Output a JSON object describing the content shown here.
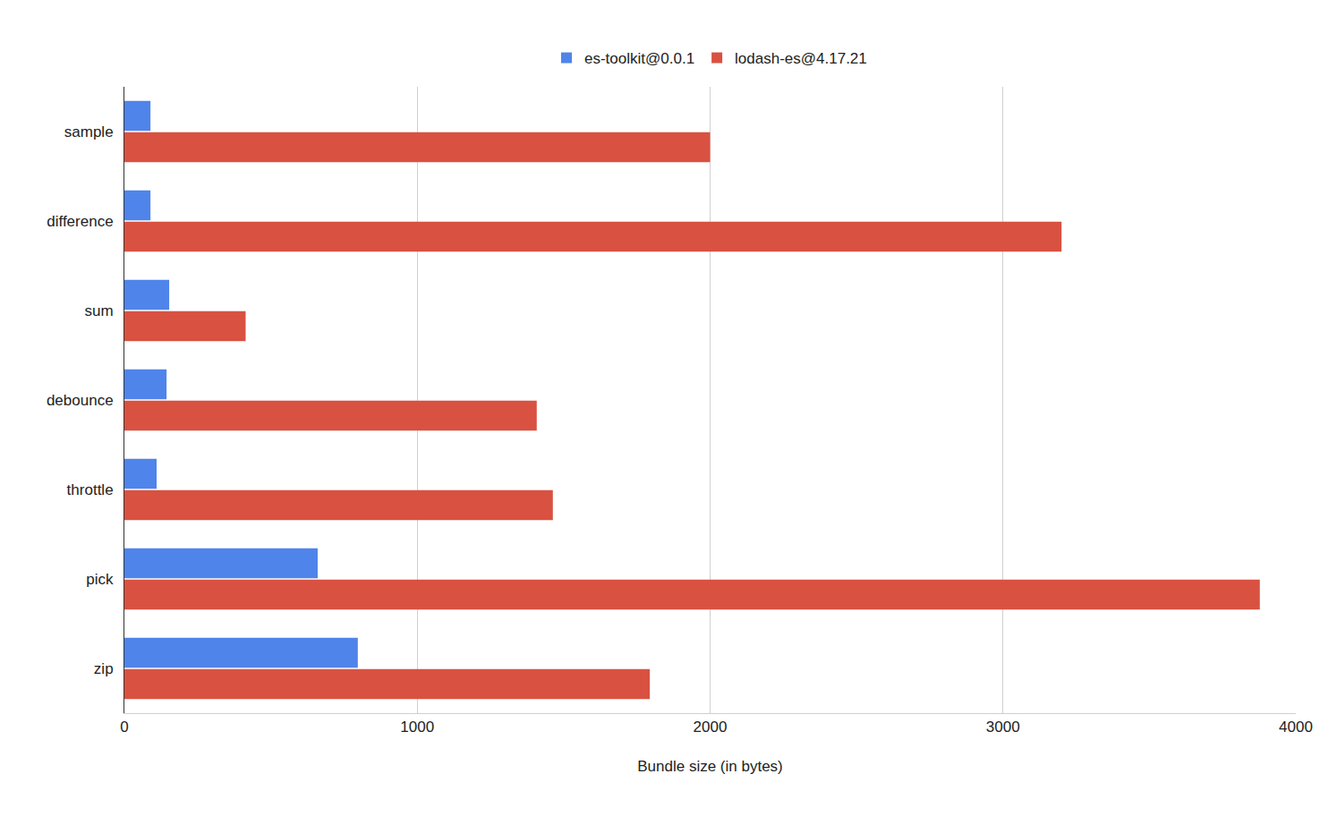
{
  "chart_data": {
    "type": "bar",
    "orientation": "horizontal",
    "x_label": "Bundle size (in bytes)",
    "categories": [
      "sample",
      "difference",
      "sum",
      "debounce",
      "throttle",
      "pick",
      "zip"
    ],
    "series": [
      {
        "name": "es-toolkit@0.0.1",
        "color": "#4f84ea",
        "values": [
          89,
          89,
          153,
          144,
          110,
          660,
          797
        ]
      },
      {
        "name": "lodash-es@4.17.21",
        "color": "#d95140",
        "values": [
          2000,
          3200,
          414,
          1408,
          1463,
          3877,
          1794
        ]
      }
    ],
    "xlim": [
      0,
      4000
    ],
    "xticks": [
      0,
      1000,
      2000,
      3000,
      4000
    ],
    "grid": true,
    "legend": "top"
  }
}
